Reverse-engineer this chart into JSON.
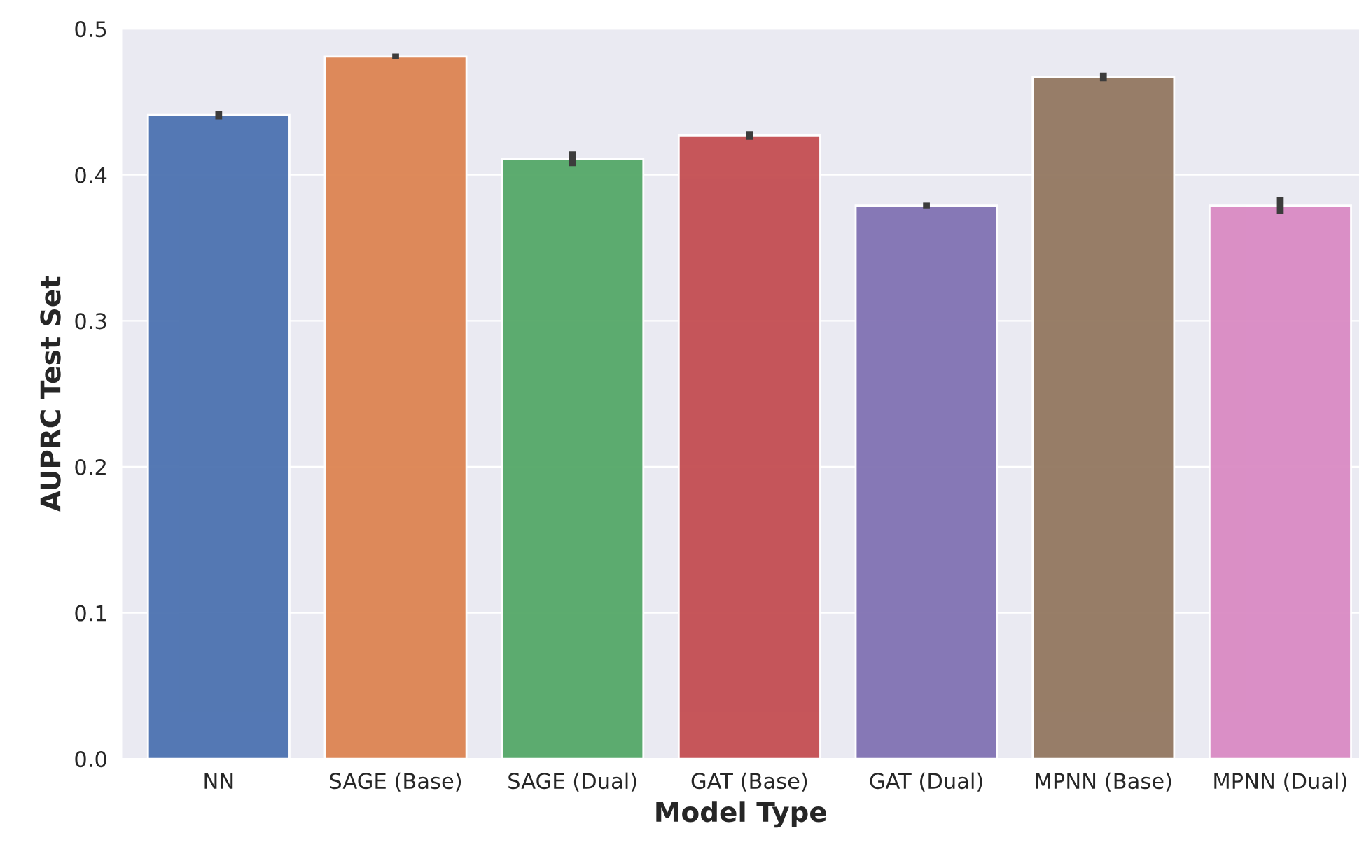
{
  "chart_data": {
    "type": "bar",
    "xlabel": "Model Type",
    "ylabel": "AUPRC Test Set",
    "categories": [
      "NN",
      "SAGE (Base)",
      "SAGE (Dual)",
      "GAT (Base)",
      "GAT (Dual)",
      "MPNN (Base)",
      "MPNN (Dual)"
    ],
    "values": [
      0.441,
      0.481,
      0.411,
      0.427,
      0.379,
      0.467,
      0.379
    ],
    "errors": [
      0.003,
      0.002,
      0.005,
      0.003,
      0.002,
      0.003,
      0.006
    ],
    "colors": [
      "#4c72b0",
      "#dd8452",
      "#55a868",
      "#c44e52",
      "#8172b3",
      "#937860",
      "#da8bc3"
    ],
    "ylim": [
      0,
      0.5
    ],
    "yticks": [
      {
        "value": 0,
        "label": "0.0"
      },
      0.1,
      0.2,
      0.3,
      0.4,
      0.5
    ],
    "grid": "y"
  }
}
